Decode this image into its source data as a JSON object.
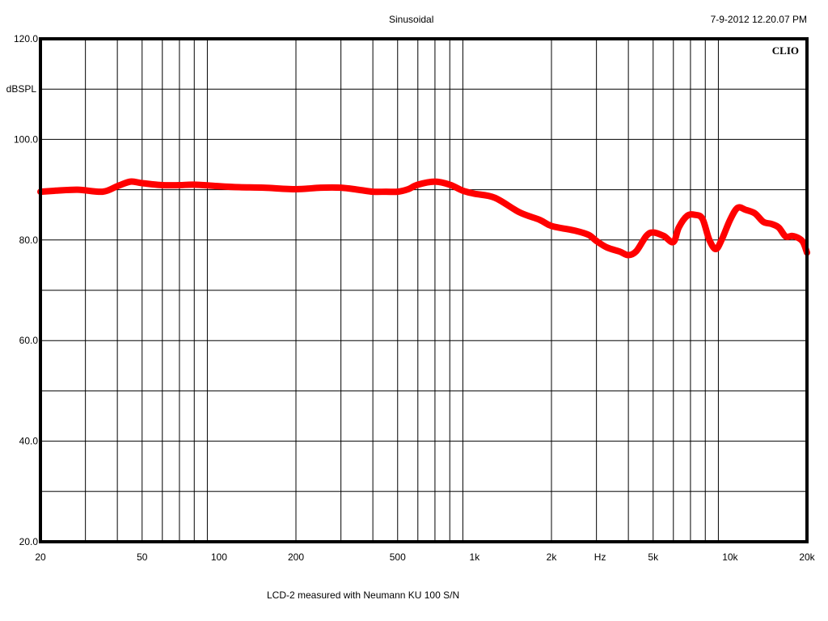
{
  "header": {
    "title": "Sinusoidal",
    "timestamp": "7-9-2012 12.20.07 PM"
  },
  "footer": {
    "caption": "LCD-2 measured with Neumann KU 100   S/N"
  },
  "brand_label": "CLIO",
  "colors": {
    "trace": "#ff0000",
    "grid": "#000000",
    "frame": "#000000",
    "background": "#ffffff"
  },
  "chart_data": {
    "type": "line",
    "title": "",
    "xlabel": "Hz",
    "ylabel": "dBSPL",
    "xscale": "log",
    "xlim": [
      20,
      20000
    ],
    "ylim": [
      20,
      120
    ],
    "grid": true,
    "x_ticks": [
      {
        "value": 20,
        "label": "20"
      },
      {
        "value": 50,
        "label": "50"
      },
      {
        "value": 100,
        "label": "100"
      },
      {
        "value": 200,
        "label": "200"
      },
      {
        "value": 500,
        "label": "500"
      },
      {
        "value": 1000,
        "label": "1k"
      },
      {
        "value": 2000,
        "label": "2k"
      },
      {
        "value": 5000,
        "label": "5k"
      },
      {
        "value": 10000,
        "label": "10k"
      },
      {
        "value": 20000,
        "label": "20k"
      }
    ],
    "x_minor_grid": [
      30,
      40,
      50,
      60,
      70,
      80,
      90,
      200,
      300,
      400,
      500,
      600,
      700,
      800,
      900,
      2000,
      3000,
      4000,
      5000,
      6000,
      7000,
      8000,
      9000
    ],
    "y_ticks": [
      {
        "value": 20,
        "label": "20.0"
      },
      {
        "value": 40,
        "label": "40.0"
      },
      {
        "value": 60,
        "label": "60.0"
      },
      {
        "value": 80,
        "label": "80.0"
      },
      {
        "value": 100,
        "label": "100.0"
      },
      {
        "value": 120,
        "label": "120.0"
      }
    ],
    "y_grid": [
      30,
      40,
      50,
      60,
      70,
      80,
      90,
      100,
      110
    ],
    "series": [
      {
        "x": [
          20,
          23,
          28,
          35,
          40,
          45,
          50,
          60,
          70,
          80,
          100,
          120,
          150,
          200,
          250,
          300,
          350,
          400,
          450,
          500,
          550,
          600,
          700,
          800,
          900,
          1000,
          1200,
          1500,
          1800,
          2000,
          2500,
          2800,
          3000,
          3300,
          3700,
          4000,
          4300,
          4700,
          5000,
          5500,
          6000,
          6300,
          6800,
          7300,
          7800,
          8300,
          8800,
          9300,
          10000,
          10700,
          11500,
          12500,
          13500,
          14500,
          15500,
          16500,
          17500,
          18500,
          19300,
          20000
        ],
        "y": [
          89.6,
          89.8,
          90.0,
          89.6,
          90.7,
          91.6,
          91.3,
          90.9,
          90.9,
          91.0,
          90.7,
          90.5,
          90.4,
          90.1,
          90.4,
          90.4,
          90.0,
          89.6,
          89.6,
          89.6,
          90.1,
          91.0,
          91.6,
          91.0,
          89.8,
          89.2,
          88.4,
          85.5,
          84.0,
          82.8,
          81.8,
          81.0,
          79.8,
          78.5,
          77.7,
          77.0,
          77.8,
          80.8,
          81.5,
          80.8,
          79.6,
          82.5,
          84.8,
          85.0,
          84.2,
          80.0,
          78.2,
          80.2,
          84.0,
          86.4,
          86.0,
          85.3,
          83.6,
          83.2,
          82.5,
          80.7,
          80.8,
          80.4,
          79.6,
          77.5
        ]
      }
    ]
  }
}
